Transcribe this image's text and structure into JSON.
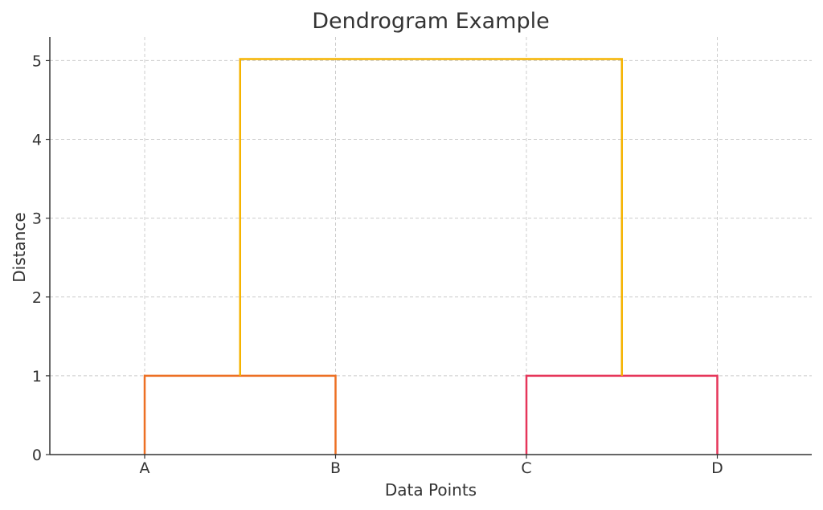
{
  "chart_data": {
    "type": "dendrogram",
    "title": "Dendrogram Example",
    "xlabel": "Data Points",
    "ylabel": "Distance",
    "leaves": [
      "A",
      "B",
      "C",
      "D"
    ],
    "ylim": [
      0,
      5.3
    ],
    "yticks": [
      "0",
      "1",
      "2",
      "3",
      "4",
      "5"
    ],
    "grid": true,
    "links": [
      {
        "name": "A-B",
        "left_leaf": "A",
        "right_leaf": "B",
        "height": 1.0,
        "color": "#ed7024"
      },
      {
        "name": "C-D",
        "left_leaf": "C",
        "right_leaf": "D",
        "height": 1.0,
        "color": "#e6365a"
      },
      {
        "name": "AB-CD",
        "left_cluster": "A-B",
        "right_cluster": "C-D",
        "child_height": 1.0,
        "height": 5.02,
        "color": "#f5b300"
      }
    ]
  }
}
